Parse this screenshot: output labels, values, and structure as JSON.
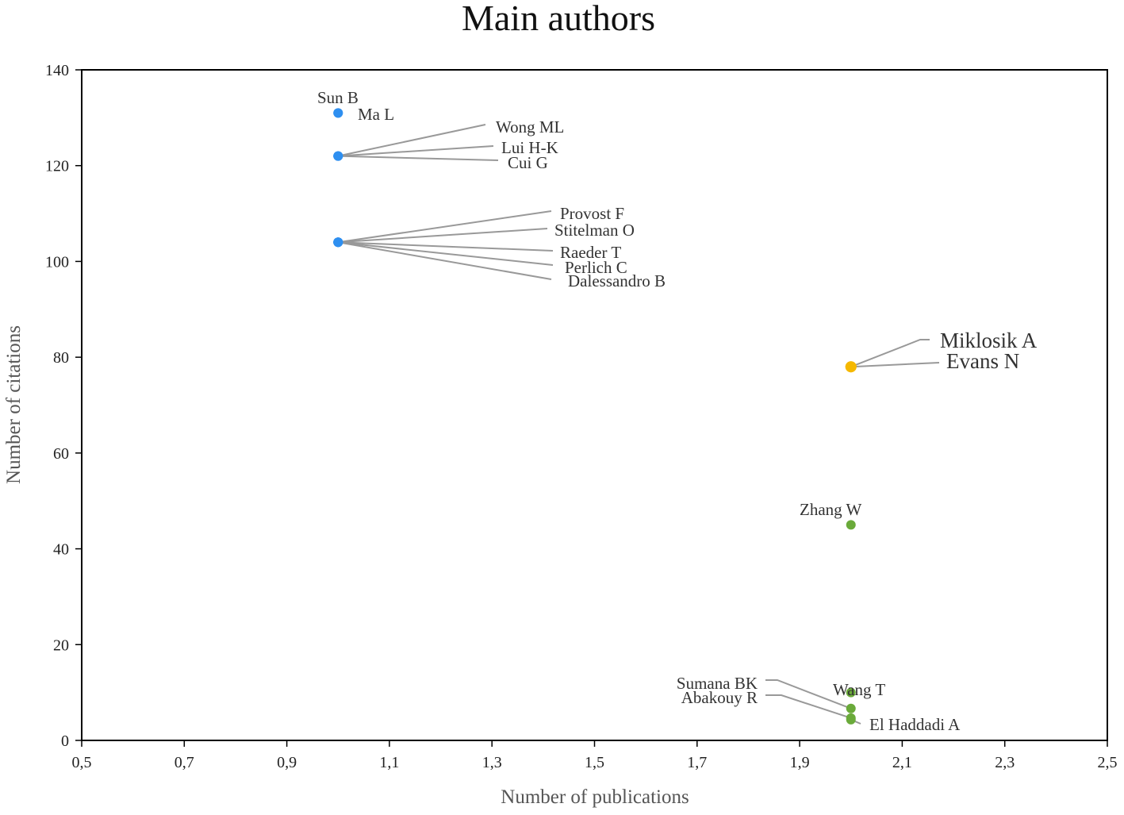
{
  "chart_data": {
    "type": "scatter",
    "title": "Main authors",
    "xlabel": "Number of publications",
    "ylabel": "Number of citations",
    "xlim": [
      0.5,
      2.5
    ],
    "ylim": [
      0,
      140
    ],
    "xticks": [
      "0,5",
      "0,7",
      "0,9",
      "1,1",
      "1,3",
      "1,5",
      "1,7",
      "1,9",
      "2,1",
      "2,3",
      "2,5"
    ],
    "xtick_values": [
      0.5,
      0.7,
      0.9,
      1.1,
      1.3,
      1.5,
      1.7,
      1.9,
      2.1,
      2.3,
      2.5
    ],
    "yticks": [
      "0",
      "20",
      "40",
      "60",
      "80",
      "100",
      "120",
      "140"
    ],
    "ytick_values": [
      0,
      20,
      40,
      60,
      80,
      100,
      120,
      140
    ],
    "grid": false,
    "colors": {
      "blue": "#2e8ff0",
      "orange": "#f5b800",
      "green": "#6aaa3a"
    },
    "points": [
      {
        "name": "Sun B",
        "publications": 1,
        "citations": 131,
        "color": "blue"
      },
      {
        "name": "Ma L",
        "publications": 1,
        "citations": 131,
        "color": "blue"
      },
      {
        "name": "Wong ML",
        "publications": 1,
        "citations": 122,
        "color": "blue"
      },
      {
        "name": "Lui H-K",
        "publications": 1,
        "citations": 122,
        "color": "blue"
      },
      {
        "name": "Cui G",
        "publications": 1,
        "citations": 122,
        "color": "blue"
      },
      {
        "name": "Provost F",
        "publications": 1,
        "citations": 104,
        "color": "blue"
      },
      {
        "name": "Stitelman  O",
        "publications": 1,
        "citations": 104,
        "color": "blue"
      },
      {
        "name": "Raeder T",
        "publications": 1,
        "citations": 104,
        "color": "blue"
      },
      {
        "name": "Perlich  C",
        "publications": 1,
        "citations": 104,
        "color": "blue"
      },
      {
        "name": "Dalessandro B",
        "publications": 1,
        "citations": 104,
        "color": "blue"
      },
      {
        "name": "Miklosik A",
        "publications": 2,
        "citations": 78,
        "color": "orange"
      },
      {
        "name": "Evans N",
        "publications": 2,
        "citations": 78,
        "color": "orange"
      },
      {
        "name": "Zhang  W",
        "publications": 2,
        "citations": 45,
        "color": "green"
      },
      {
        "name": "Wang T",
        "publications": 2,
        "citations": 10,
        "color": "green"
      },
      {
        "name": "Sumana BK",
        "publications": 2,
        "citations": 6,
        "color": "green"
      },
      {
        "name": "Abakouy R",
        "publications": 2,
        "citations": 5,
        "color": "green"
      },
      {
        "name": "El Haddadi A",
        "publications": 2,
        "citations": 5,
        "color": "green"
      }
    ]
  }
}
